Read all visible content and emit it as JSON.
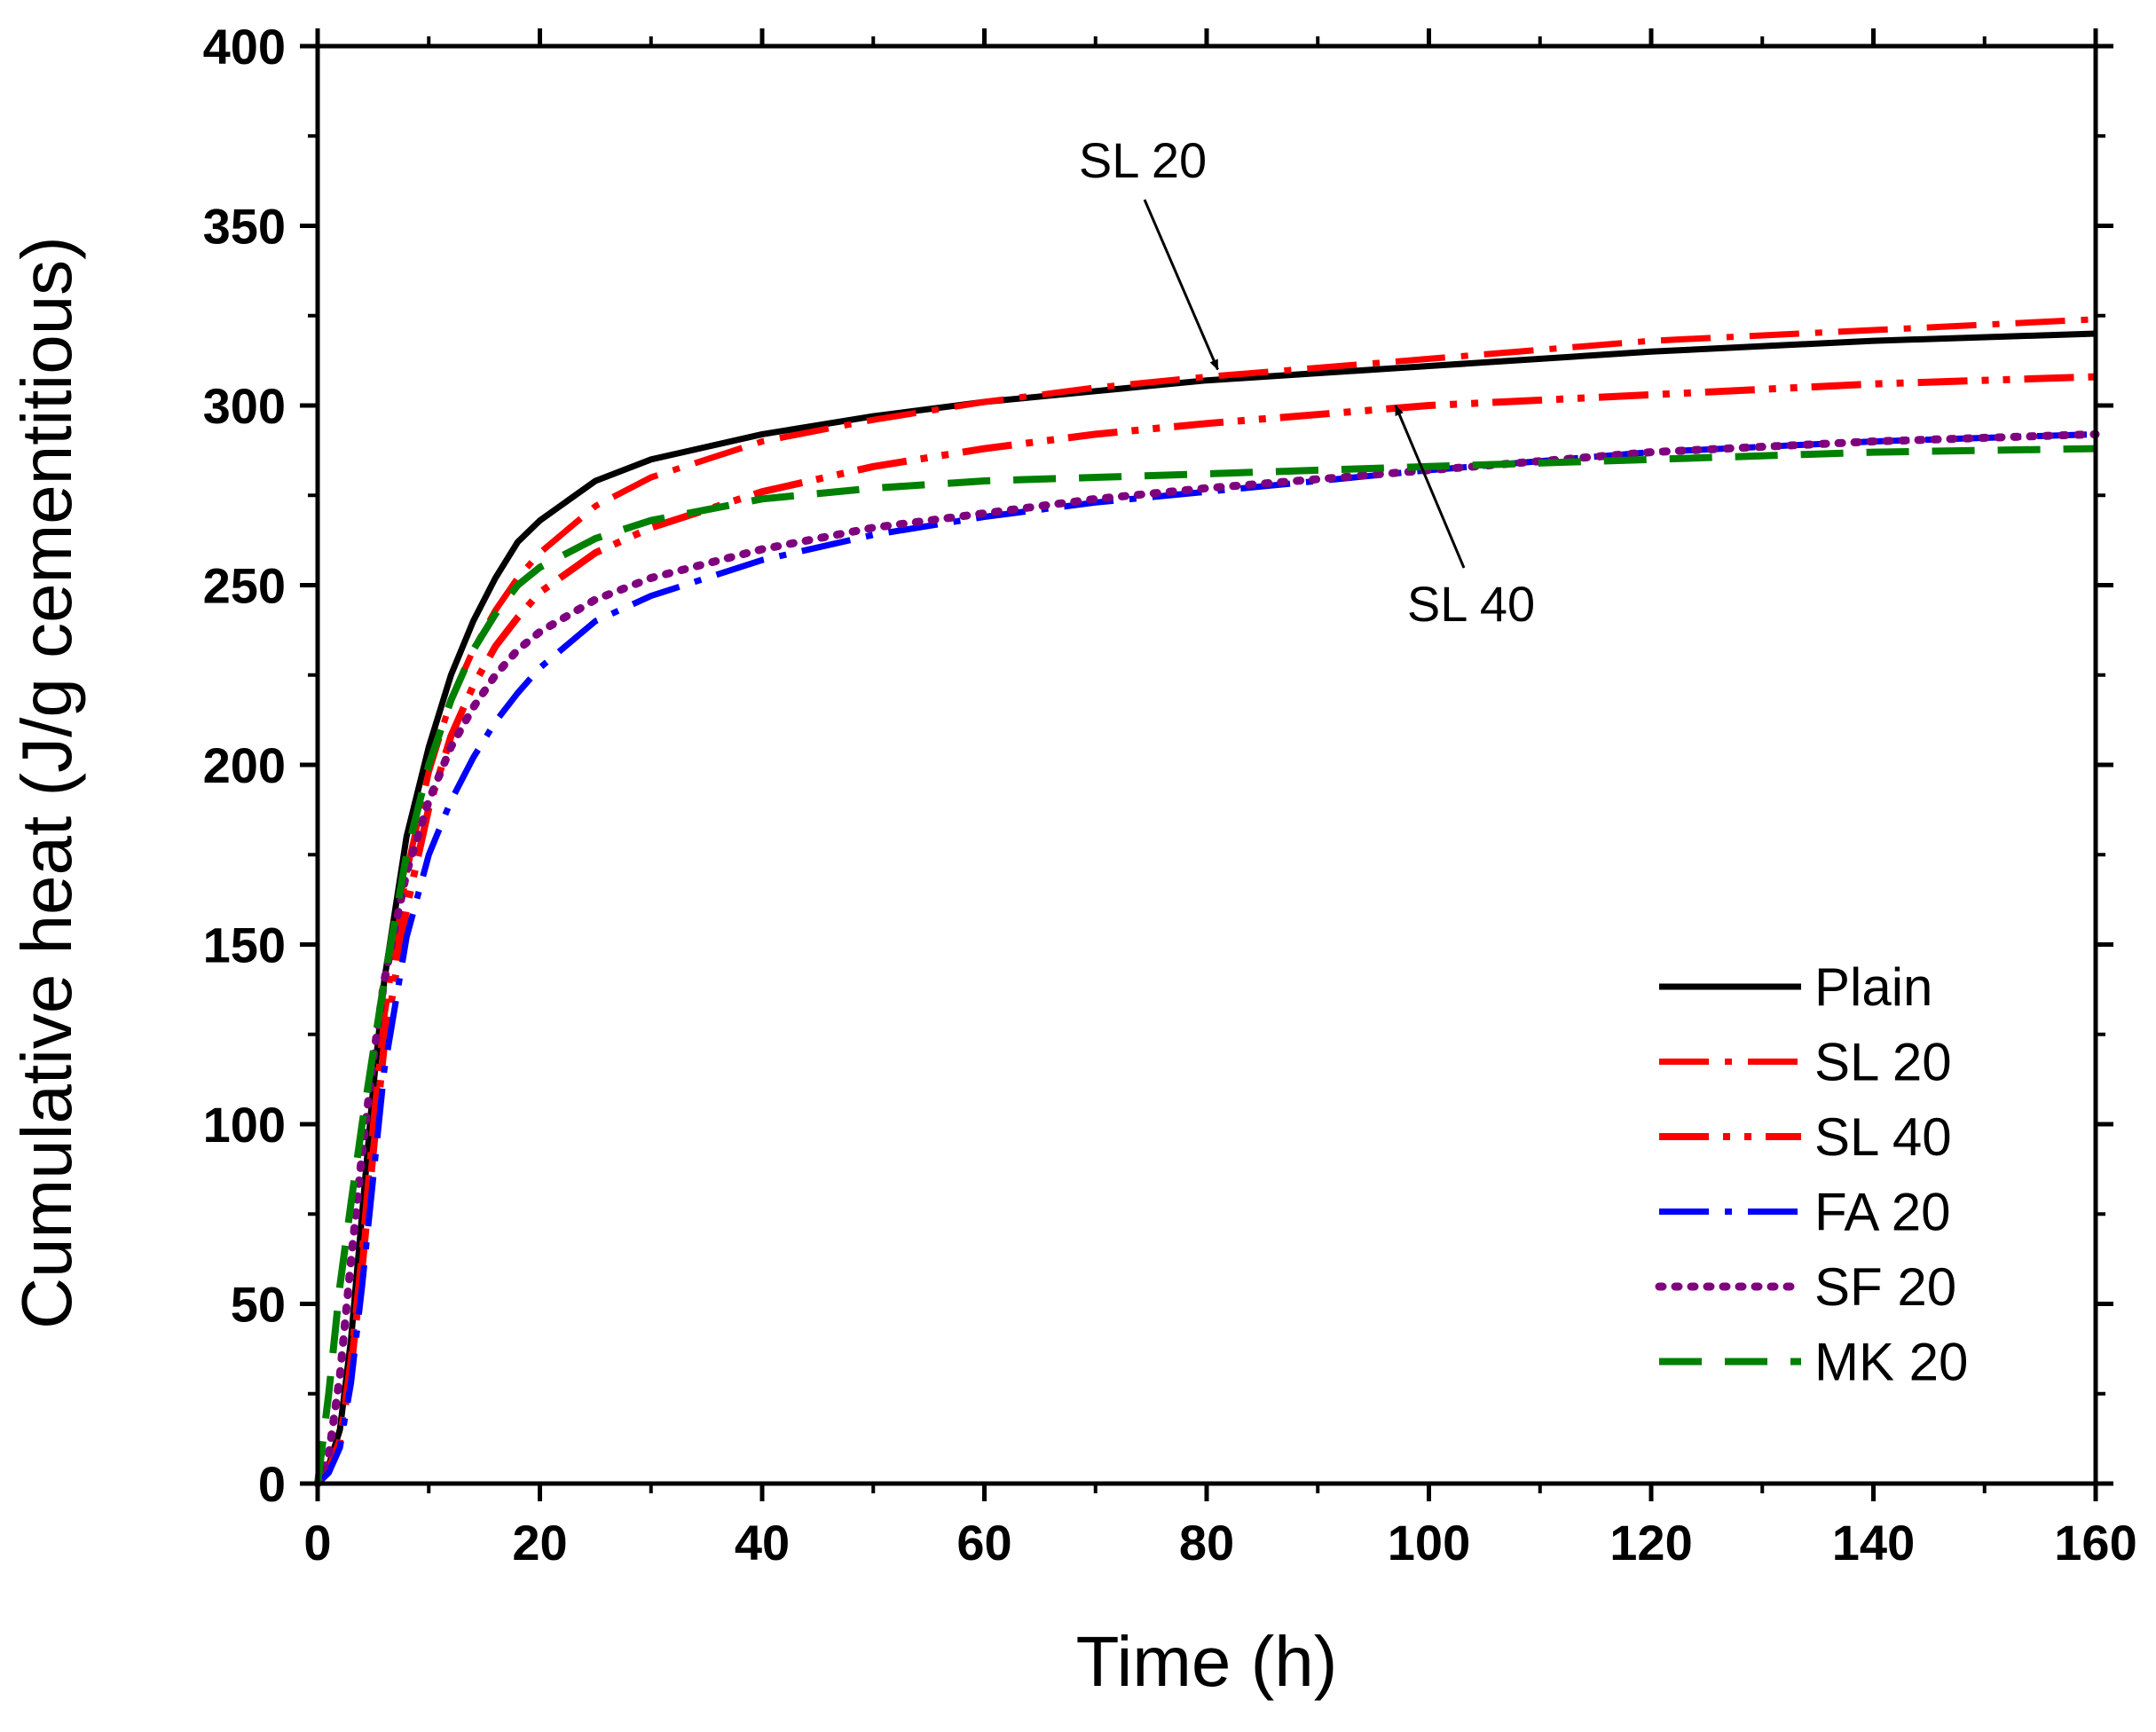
{
  "chart_data": {
    "type": "line",
    "title": "",
    "xlabel": "Time (h)",
    "ylabel": "Cumulative heat (J/g cementitious)",
    "xlim": [
      0,
      160
    ],
    "ylim": [
      0,
      400
    ],
    "xticks": [
      0,
      20,
      40,
      60,
      80,
      100,
      120,
      140,
      160
    ],
    "xtick_labels": [
      "0",
      "20",
      "40",
      "60",
      "80",
      "100",
      "120",
      "140",
      "160"
    ],
    "yticks": [
      0,
      50,
      100,
      150,
      200,
      250,
      300,
      350,
      400
    ],
    "ytick_labels": [
      "0",
      "50",
      "100",
      "150",
      "200",
      "250",
      "300",
      "350",
      "400"
    ],
    "grid": false,
    "legend_position": "bottom-right",
    "series": [
      {
        "name": "Plain",
        "color": "#000000",
        "style": "solid",
        "x": [
          0,
          1,
          2,
          3,
          4,
          5,
          6,
          8,
          10,
          12,
          14,
          16,
          18,
          20,
          25,
          30,
          40,
          50,
          60,
          70,
          80,
          100,
          120,
          140,
          160
        ],
        "y": [
          0,
          5,
          15,
          40,
          75,
          110,
          140,
          180,
          205,
          225,
          240,
          252,
          262,
          268,
          279,
          285,
          292,
          297,
          301,
          304,
          307,
          311,
          315,
          318,
          320
        ]
      },
      {
        "name": "SL 20",
        "color": "#ff0000",
        "style": "dashdot",
        "x": [
          0,
          1,
          2,
          3,
          4,
          5,
          6,
          8,
          10,
          12,
          14,
          16,
          18,
          20,
          25,
          30,
          40,
          50,
          60,
          70,
          80,
          100,
          120,
          140,
          160
        ],
        "y": [
          0,
          4,
          12,
          35,
          65,
          100,
          130,
          170,
          198,
          218,
          232,
          243,
          252,
          259,
          272,
          280,
          290,
          296,
          301,
          305,
          308,
          313,
          318,
          321,
          324
        ]
      },
      {
        "name": "SL 40",
        "color": "#ff0000",
        "style": "dashdotdot",
        "x": [
          0,
          1,
          2,
          3,
          4,
          5,
          6,
          8,
          10,
          12,
          14,
          16,
          18,
          20,
          25,
          30,
          40,
          50,
          60,
          70,
          80,
          100,
          120,
          140,
          160
        ],
        "y": [
          0,
          4,
          12,
          32,
          60,
          92,
          122,
          160,
          188,
          208,
          222,
          233,
          241,
          248,
          259,
          266,
          276,
          283,
          288,
          292,
          295,
          300,
          303,
          306,
          308
        ]
      },
      {
        "name": "FA 20",
        "color": "#0000ff",
        "style": "dashdot",
        "x": [
          0,
          1,
          2,
          3,
          4,
          5,
          6,
          8,
          10,
          12,
          14,
          16,
          18,
          20,
          25,
          30,
          40,
          50,
          60,
          70,
          80,
          100,
          120,
          140,
          160
        ],
        "y": [
          0,
          3,
          10,
          28,
          55,
          85,
          115,
          152,
          175,
          190,
          202,
          212,
          220,
          227,
          240,
          247,
          257,
          264,
          269,
          273,
          276,
          282,
          287,
          290,
          292
        ]
      },
      {
        "name": "SF 20",
        "color": "#7f007f",
        "style": "dotted",
        "x": [
          0,
          1,
          2,
          3,
          4,
          5,
          6,
          8,
          10,
          12,
          14,
          16,
          18,
          20,
          25,
          30,
          40,
          50,
          60,
          70,
          80,
          100,
          120,
          140,
          160
        ],
        "y": [
          0,
          8,
          30,
          62,
          92,
          118,
          140,
          170,
          190,
          205,
          216,
          225,
          232,
          237,
          246,
          252,
          260,
          266,
          270,
          274,
          277,
          282,
          287,
          290,
          292
        ]
      },
      {
        "name": "MK 20",
        "color": "#008000",
        "style": "dashed",
        "x": [
          0,
          1,
          2,
          3,
          4,
          5,
          6,
          8,
          10,
          12,
          14,
          16,
          18,
          20,
          25,
          30,
          40,
          50,
          60,
          70,
          80,
          100,
          120,
          140,
          160
        ],
        "y": [
          0,
          25,
          55,
          78,
          100,
          120,
          140,
          175,
          200,
          218,
          232,
          242,
          250,
          255,
          263,
          268,
          274,
          277,
          279,
          280,
          281,
          283,
          285,
          287,
          288
        ]
      }
    ],
    "annotations": [
      {
        "text": "SL 20",
        "arrow_to": [
          81,
          310
        ]
      },
      {
        "text": "SL 40",
        "arrow_to": [
          97,
          300
        ]
      }
    ]
  }
}
